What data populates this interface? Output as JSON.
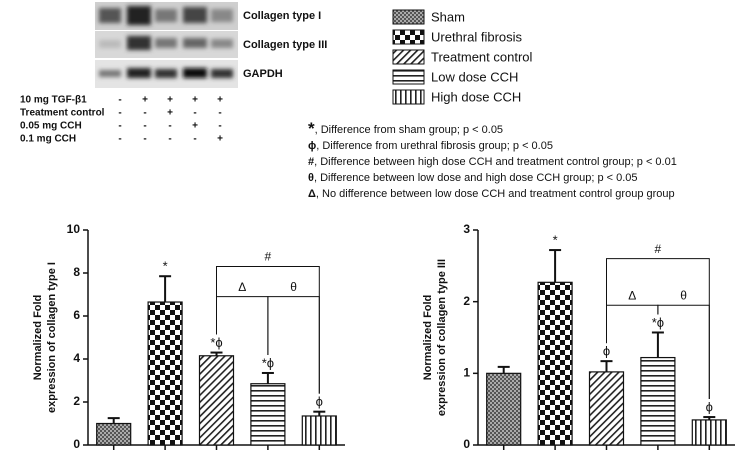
{
  "blot": {
    "bands": [
      "Collagen type I",
      "Collagen type III",
      "GAPDH"
    ],
    "conditions": [
      {
        "label": "10 mg TGF-β1",
        "signs": [
          "-",
          "+",
          "+",
          "+",
          "+"
        ]
      },
      {
        "label": "Treatment control",
        "signs": [
          "-",
          "-",
          "+",
          "-",
          "-"
        ]
      },
      {
        "label": "0.05 mg CCH",
        "signs": [
          "-",
          "-",
          "-",
          "+",
          "-"
        ]
      },
      {
        "label": "0.1 mg CCH",
        "signs": [
          "-",
          "-",
          "-",
          "-",
          "+"
        ]
      }
    ]
  },
  "legend": [
    {
      "name": "Sham",
      "pattern": "crosshatch"
    },
    {
      "name": "Urethral fibrosis",
      "pattern": "checker"
    },
    {
      "name": "Treatment control",
      "pattern": "diagonal"
    },
    {
      "name": "Low dose CCH",
      "pattern": "horizontal"
    },
    {
      "name": "High dose CCH",
      "pattern": "vertical"
    }
  ],
  "notes": [
    {
      "symbol": "*",
      "text": ", Difference from sham group; p < 0.05"
    },
    {
      "symbol": "ϕ",
      "text": ", Difference from urethral fibrosis group; p < 0.05"
    },
    {
      "symbol": "#",
      "text": ", Difference  between high dose CCH and treatment control group; p < 0.01"
    },
    {
      "symbol": "θ",
      "text": ", Difference  between low dose and  high dose CCH group; p < 0.05"
    },
    {
      "symbol": "Δ",
      "text": ", No difference between low dose CCH and treatment control group group"
    }
  ],
  "chart_data": [
    {
      "type": "bar",
      "ylabel": [
        "Normalized Fold",
        "expression of collagen type I"
      ],
      "categories": [
        null,
        null,
        null,
        null,
        null
      ],
      "values": [
        1.0,
        6.65,
        4.15,
        2.85,
        1.35
      ],
      "errors": [
        0.25,
        1.2,
        0.15,
        0.5,
        0.2
      ],
      "bar_labels": [
        null,
        "*",
        "*ϕ",
        "*ϕ",
        "ϕ"
      ],
      "brackets": [
        {
          "label": "#",
          "from": 2,
          "to": 4,
          "y": 8.3
        },
        {
          "label": "Δ",
          "from": 2,
          "to": 3,
          "y": 6.9
        },
        {
          "label": "θ",
          "from": 3,
          "to": 4,
          "y": 6.9
        }
      ],
      "ylim": [
        0,
        10
      ],
      "yticks": [
        0,
        2,
        4,
        6,
        8,
        10
      ]
    },
    {
      "type": "bar",
      "ylabel": [
        "Normalized Fold",
        "expression of collagen type III"
      ],
      "categories": [
        null,
        null,
        null,
        null,
        null
      ],
      "values": [
        1.0,
        2.27,
        1.02,
        1.22,
        0.35
      ],
      "errors": [
        0.09,
        0.45,
        0.15,
        0.35,
        0.04
      ],
      "bar_labels": [
        null,
        "*",
        "ϕ",
        "*ϕ",
        "ϕ"
      ],
      "brackets": [
        {
          "label": "#",
          "from": 2,
          "to": 4,
          "y": 2.6
        },
        {
          "label": "Δ",
          "from": 2,
          "to": 3,
          "y": 1.95
        },
        {
          "label": "θ",
          "from": 3,
          "to": 4,
          "y": 1.95
        }
      ],
      "ylim": [
        0,
        3
      ],
      "yticks": [
        0,
        1,
        2,
        3
      ]
    }
  ]
}
